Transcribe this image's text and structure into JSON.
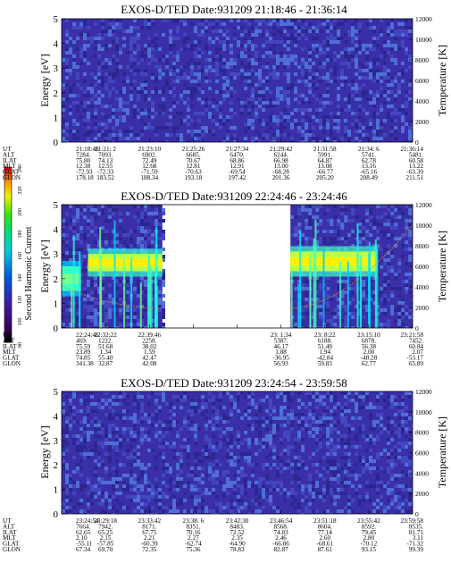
{
  "colorbar": {
    "label": "Second Harmonic Current",
    "ticks": [
      "240",
      "220",
      "200",
      "180",
      "160",
      "140",
      "120",
      "100",
      "80"
    ],
    "range": [
      80,
      240
    ]
  },
  "chart_data": [
    {
      "type": "heatmap",
      "title": "EXOS-D/TED   Date:931209  21:18:46 - 21:36:14",
      "ylabel": "Energy [eV]",
      "ylabel_right": "Temperature [K]",
      "ylim": [
        0,
        5
      ],
      "yticks": [
        "0",
        "1",
        "2",
        "3",
        "4",
        "5"
      ],
      "ylim_right": [
        0,
        12000
      ],
      "yticks_right": [
        "0",
        "2000",
        "4000",
        "6000",
        "8000",
        "10000",
        "12000"
      ],
      "data_segments": [
        [
          0,
          1
        ]
      ],
      "features": [],
      "orbit": {
        "x_count": 9,
        "rows": [
          {
            "label": "UT",
            "values": [
              "21:18:46",
              "21:21: 2",
              "21:23:10",
              "21:25:26",
              "21:27:34",
              "21:29:42",
              "21:31:58",
              "21:34: 6",
              "21:36:14"
            ]
          },
          {
            "label": "ALT",
            "values": [
              "7284.",
              "7093.",
              "6902.",
              "6685.",
              "6470.",
              "6244.",
              "5991.",
              "5741.",
              "5481."
            ]
          },
          {
            "label": "ILAT",
            "values": [
              "75.80",
              "74.13",
              "72.49",
              "70.67",
              "68.86",
              "66.98",
              "64.87",
              "62.78",
              "60.58"
            ]
          },
          {
            "label": "MLT",
            "values": [
              "12.38",
              "12.55",
              "12.68",
              "12.81",
              "12.91",
              "13.00",
              "13.08",
              "13.16",
              "13.22"
            ]
          },
          {
            "label": "GLAT",
            "values": [
              "-72.93",
              "-72.33",
              "-71.59",
              "-70.63",
              "-69.54",
              "-68.28",
              "-66.77",
              "-65.16",
              "-63.39"
            ]
          },
          {
            "label": "GLON",
            "values": [
              "178.18",
              "183.52",
              "188.34",
              "193.18",
              "197.42",
              "201.36",
              "205.20",
              "208.49",
              "211.51"
            ]
          }
        ]
      }
    },
    {
      "type": "heatmap",
      "title": "EXOS-D/TED   Date:931209  22:24:46 - 23:24:46",
      "ylabel": "Energy [eV]",
      "ylabel_right": "Temperature [K]",
      "ylim": [
        0,
        5
      ],
      "yticks": [
        "0",
        "1",
        "2",
        "3",
        "4",
        "5"
      ],
      "ylim_right": [
        0,
        12000
      ],
      "yticks_right": [
        "0",
        "2000",
        "4000",
        "6000",
        "8000",
        "10000",
        "12000"
      ],
      "data_segments": [
        [
          0,
          0.287
        ],
        [
          0.652,
          1
        ]
      ],
      "features": [
        {
          "type": "band",
          "x": [
            0.0,
            0.055
          ],
          "energy": [
            1.5,
            2.5
          ],
          "level": 0.6
        },
        {
          "type": "band",
          "x": [
            0.075,
            0.287
          ],
          "energy": [
            2.3,
            3.0
          ],
          "level": 0.78
        },
        {
          "type": "band",
          "x": [
            0.652,
            0.9
          ],
          "energy": [
            2.3,
            3.1
          ],
          "level": 0.78
        },
        {
          "type": "curve",
          "x": [
            0.0,
            0.287
          ],
          "energy_start": 1.7,
          "energy_min": 0.8
        },
        {
          "type": "curve",
          "x": [
            0.652,
            1.0
          ],
          "energy_start": 0.8,
          "energy_end": 4.2
        }
      ],
      "orbit": {
        "x_count": 9,
        "rows": [
          {
            "label": "UT",
            "values": [
              "22:24:46",
              "22:32:22",
              "22:39:46",
              "",
              "",
              "23: 1:34",
              "23: 8:22",
              "23:15:10",
              "23:21:58"
            ]
          },
          {
            "label": "ALT",
            "values": [
              "469.",
              "1222.",
              "2258.",
              "",
              "",
              "5387.",
              "6188.",
              "6878.",
              "7452."
            ]
          },
          {
            "label": "ILAT",
            "values": [
              "75.59",
              "51.68",
              "38.02",
              "",
              "",
              "46.17",
              "51.49",
              "56.38",
              "60.84"
            ]
          },
          {
            "label": "MLT",
            "values": [
              "23.89",
              "1.34",
              "1.59",
              "",
              "",
              "1.88",
              "1.94",
              "2.00",
              "2.07"
            ]
          },
          {
            "label": "GLAT",
            "values": [
              "74.85",
              "55.40",
              "42.47",
              "",
              "",
              "-36.95",
              "-42.84",
              "-48.28",
              "-53.17"
            ]
          },
          {
            "label": "GLON",
            "values": [
              "341.38",
              "32.87",
              "42.08",
              "",
              "",
              "56.93",
              "59.83",
              "62.77",
              "65.89"
            ]
          }
        ]
      }
    },
    {
      "type": "heatmap",
      "title": "EXOS-D/TED   Date:931209  23:24:54 - 23:59:58",
      "ylabel": "Energy [eV]",
      "ylabel_right": "Temperature [K]",
      "ylim": [
        0,
        5
      ],
      "yticks": [
        "0",
        "1",
        "2",
        "3",
        "4",
        "5"
      ],
      "ylim_right": [
        0,
        12000
      ],
      "yticks_right": [
        "0",
        "2000",
        "4000",
        "6000",
        "8000",
        "10000",
        "12000"
      ],
      "data_segments": [
        [
          0,
          1
        ]
      ],
      "features": [],
      "orbit": {
        "x_count": 9,
        "rows": [
          {
            "label": "UT",
            "values": [
              "23:24:54",
              "23:29:18",
              "23:33:42",
              "23:38: 6",
              "23:42:30",
              "23:46:54",
              "23:51:18",
              "23:55:42",
              "23:59:58"
            ]
          },
          {
            "label": "ALT",
            "values": [
              "7664.",
              "7942.",
              "8171.",
              "8351.",
              "8483.",
              "8568.",
              "8604.",
              "8592.",
              "8535."
            ]
          },
          {
            "label": "ILAT",
            "values": [
              "62.65",
              "65.25",
              "67.75",
              "70.16",
              "72.52",
              "74.83",
              "77.14",
              "79.45",
              "81.71"
            ]
          },
          {
            "label": "MLT",
            "values": [
              "2.10",
              "2.15",
              "2.21",
              "2.27",
              "2.35",
              "2.46",
              "2.60",
              "2.80",
              "3.11"
            ]
          },
          {
            "label": "GLAT",
            "values": [
              "-55.11",
              "-57.85",
              "-60.39",
              "-62.74",
              "-64.90",
              "-66.86",
              "-68.61",
              "-70.12",
              "-71.32"
            ]
          },
          {
            "label": "GLON",
            "values": [
              "67.34",
              "69.70",
              "72.35",
              "75.36",
              "78.83",
              "82.87",
              "87.61",
              "93.15",
              "99.39"
            ]
          }
        ]
      }
    }
  ]
}
